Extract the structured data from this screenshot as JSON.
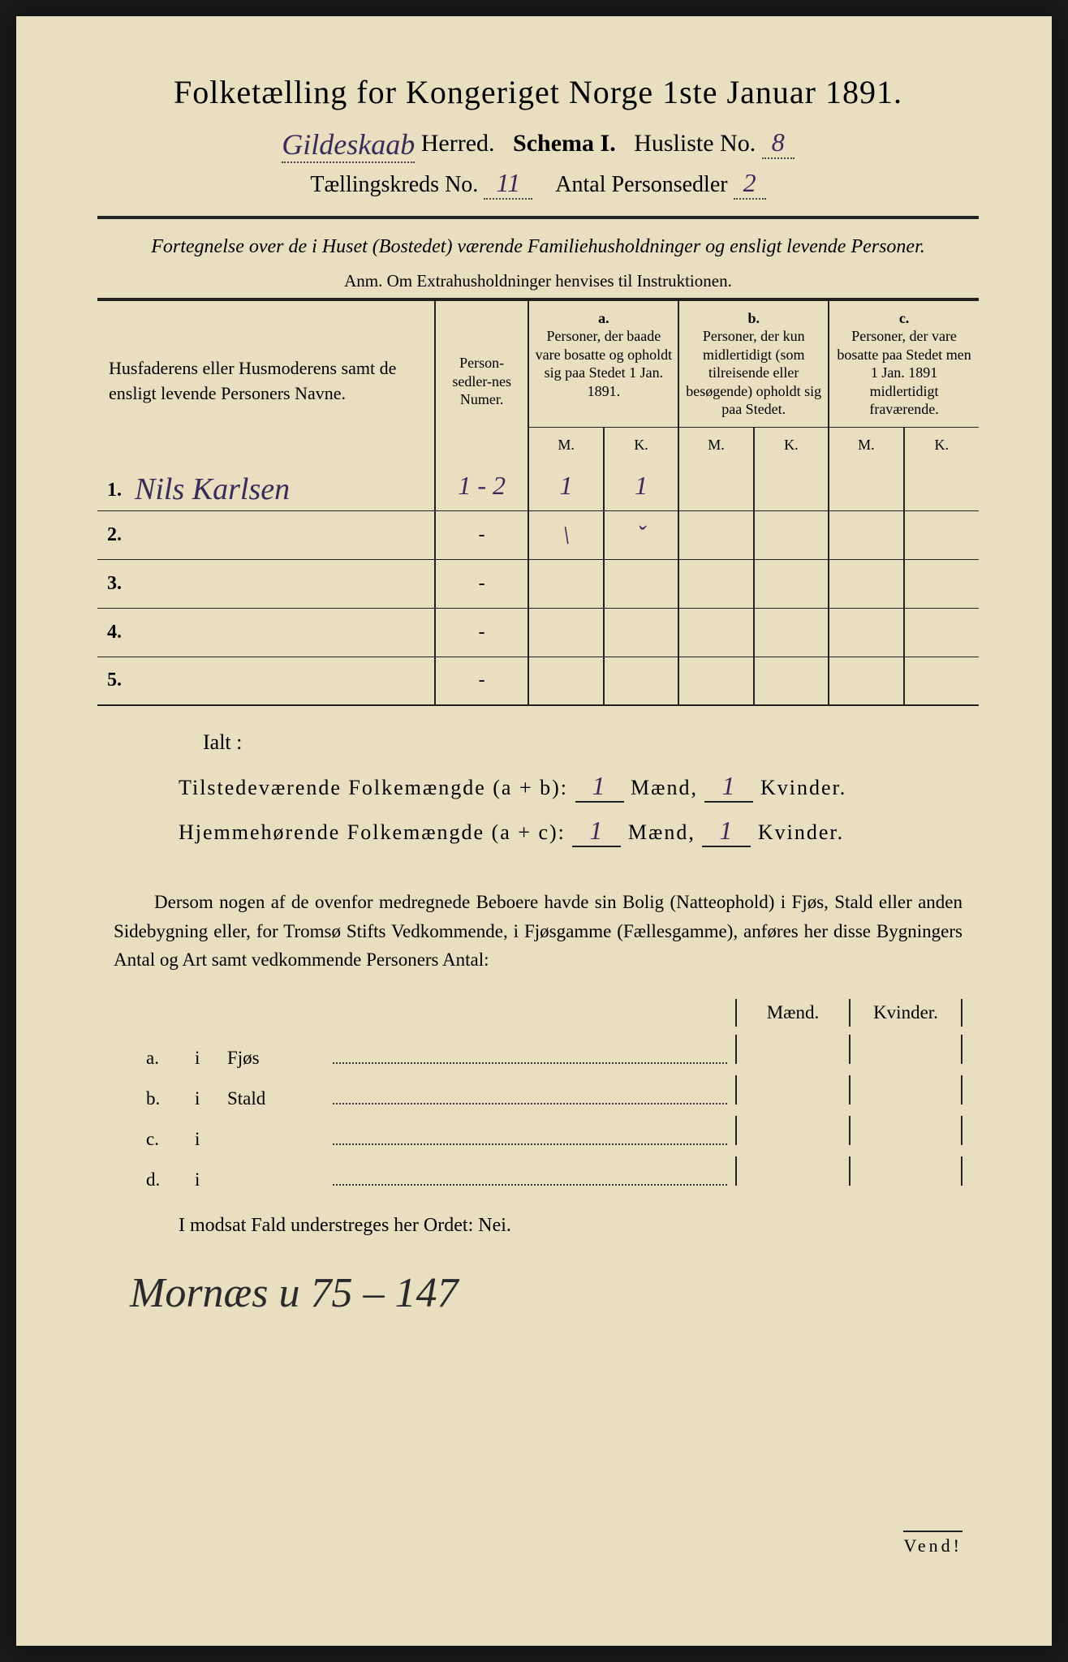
{
  "colors": {
    "paper": "#e8dfc0",
    "ink": "#222222",
    "handwriting": "#3a2a5a",
    "background": "#1a1a1a"
  },
  "title": "Folketælling for Kongeriget Norge 1ste Januar 1891.",
  "header": {
    "herred_handwritten": "Gildeskaab",
    "herred_label": "Herred.",
    "schema_label": "Schema I.",
    "husliste_label": "Husliste No.",
    "husliste_no": "8",
    "kreds_label": "Tællingskreds No.",
    "kreds_no": "11",
    "personsedler_label": "Antal Personsedler",
    "personsedler_no": "2"
  },
  "fortegnelse": "Fortegnelse over de i Huset (Bostedet) værende Familiehusholdninger og ensligt levende Personer.",
  "anm": "Anm. Om Extrahusholdninger henvises til Instruktionen.",
  "table": {
    "col_names_header": "Husfaderens eller Husmoderens samt de ensligt levende Personers Navne.",
    "col_numer_header": "Person-sedler-nes Numer.",
    "col_a_label": "a.",
    "col_a_text": "Personer, der baade vare bosatte og opholdt sig paa Stedet 1 Jan. 1891.",
    "col_b_label": "b.",
    "col_b_text": "Personer, der kun midlertidigt (som tilreisende eller besøgende) opholdt sig paa Stedet.",
    "col_c_label": "c.",
    "col_c_text": "Personer, der vare bosatte paa Stedet men 1 Jan. 1891 midlertidigt fraværende.",
    "m_label": "M.",
    "k_label": "K.",
    "rows": [
      {
        "num": "1.",
        "name": "Nils Karlsen",
        "numer": "1 - 2",
        "a_m": "1",
        "a_k": "1",
        "b_m": "",
        "b_k": "",
        "c_m": "",
        "c_k": ""
      },
      {
        "num": "2.",
        "name": "",
        "numer": "-",
        "a_m": "\\",
        "a_k": "ˇ",
        "b_m": "",
        "b_k": "",
        "c_m": "",
        "c_k": ""
      },
      {
        "num": "3.",
        "name": "",
        "numer": "-",
        "a_m": "",
        "a_k": "",
        "b_m": "",
        "b_k": "",
        "c_m": "",
        "c_k": ""
      },
      {
        "num": "4.",
        "name": "",
        "numer": "-",
        "a_m": "",
        "a_k": "",
        "b_m": "",
        "b_k": "",
        "c_m": "",
        "c_k": ""
      },
      {
        "num": "5.",
        "name": "",
        "numer": "-",
        "a_m": "",
        "a_k": "",
        "b_m": "",
        "b_k": "",
        "c_m": "",
        "c_k": ""
      }
    ]
  },
  "ialt": {
    "label": "Ialt :",
    "line1_label": "Tilstedeværende Folkemængde (a + b):",
    "line1_m": "1",
    "line1_k": "1",
    "line2_label": "Hjemmehørende Folkemængde (a + c):",
    "line2_m": "1",
    "line2_k": "1",
    "maend": "Mænd,",
    "kvinder": "Kvinder."
  },
  "paragraph": "Dersom nogen af de ovenfor medregnede Beboere havde sin Bolig (Natteophold) i Fjøs, Stald eller anden Sidebygning eller, for Tromsø Stifts Vedkommende, i Fjøsgamme (Fællesgamme), anføres her disse Bygningers Antal og Art samt vedkommende Personers Antal:",
  "lodging": {
    "header_m": "Mænd.",
    "header_k": "Kvinder.",
    "rows": [
      {
        "label": "a.",
        "i": "i",
        "type": "Fjøs"
      },
      {
        "label": "b.",
        "i": "i",
        "type": "Stald"
      },
      {
        "label": "c.",
        "i": "i",
        "type": ""
      },
      {
        "label": "d.",
        "i": "i",
        "type": ""
      }
    ]
  },
  "nei_line": "I modsat Fald understreges her Ordet: Nei.",
  "bottom_signature": "Mornæs u 75 – 147",
  "vend": "Vend!"
}
